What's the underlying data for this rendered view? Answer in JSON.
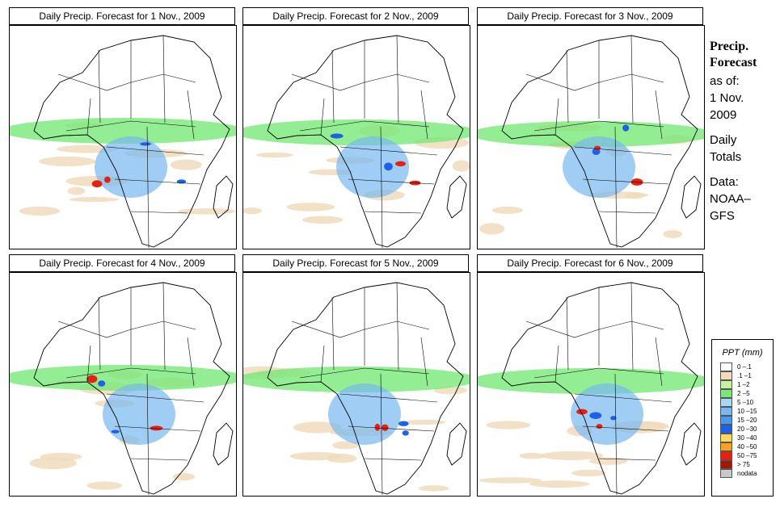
{
  "panels": [
    {
      "title": "Daily Precip. Forecast for  1 Nov., 2009"
    },
    {
      "title": "Daily Precip. Forecast for  2 Nov., 2009"
    },
    {
      "title": "Daily Precip. Forecast for  3 Nov., 2009"
    },
    {
      "title": "Daily Precip. Forecast for  4 Nov., 2009"
    },
    {
      "title": "Daily Precip. Forecast for  5 Nov., 2009"
    },
    {
      "title": "Daily Precip. Forecast for  6 Nov., 2009"
    }
  ],
  "sidebar": {
    "title_line1": "Precip.",
    "title_line2": "Forecast",
    "asof_label": "as of:",
    "date_line1": "1 Nov.",
    "date_line2": "2009",
    "daily_line1": "Daily",
    "daily_line2": "Totals",
    "data_line1": "Data:",
    "data_line2": "NOAA–",
    "data_line3": "GFS"
  },
  "legend": {
    "title": "PPT (mm)",
    "items": [
      {
        "label": "0 –.1",
        "color": "#ffffff"
      },
      {
        "label": ".1 –1",
        "color": "#f0dcbc"
      },
      {
        "label": "1 –2",
        "color": "#c8f0a0"
      },
      {
        "label": "2 –5",
        "color": "#78e878"
      },
      {
        "label": "5 –10",
        "color": "#a8d8f0"
      },
      {
        "label": "10 –15",
        "color": "#78b8f0"
      },
      {
        "label": "15 –20",
        "color": "#4898f0"
      },
      {
        "label": "20 –30",
        "color": "#2060e8"
      },
      {
        "label": "30 –40",
        "color": "#f8d860"
      },
      {
        "label": "40 –50",
        "color": "#f8a020"
      },
      {
        "label": "50 –75",
        "color": "#e82010"
      },
      {
        "label": "> 75",
        "color": "#a01808"
      },
      {
        "label": "nodata",
        "color": "#c8c8c8"
      }
    ]
  }
}
